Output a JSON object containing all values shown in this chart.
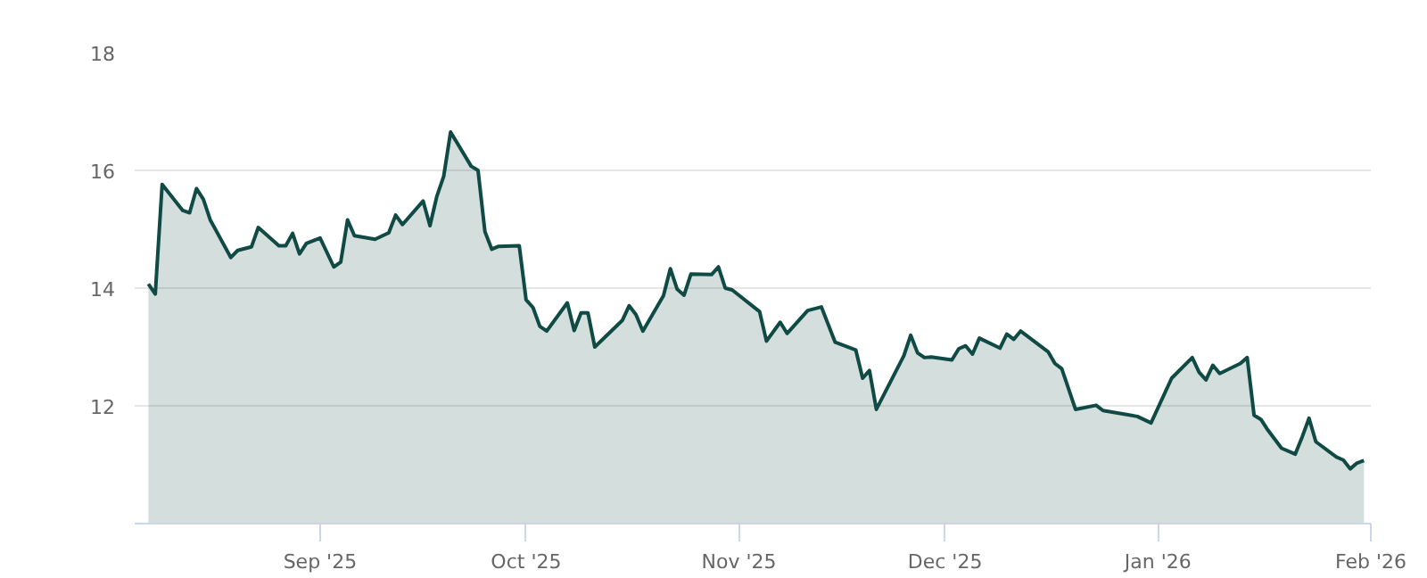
{
  "chart_data": {
    "type": "area",
    "series": [
      {
        "color": "#0f4a45",
        "x": [
          "2025-08-07",
          "2025-08-08",
          "2025-08-09",
          "2025-08-12",
          "2025-08-13",
          "2025-08-14",
          "2025-08-15",
          "2025-08-16",
          "2025-08-19",
          "2025-08-20",
          "2025-08-22",
          "2025-08-23",
          "2025-08-26",
          "2025-08-27",
          "2025-08-28",
          "2025-08-29",
          "2025-08-30",
          "2025-09-01",
          "2025-09-03",
          "2025-09-04",
          "2025-09-05",
          "2025-09-06",
          "2025-09-09",
          "2025-09-11",
          "2025-09-12",
          "2025-09-13",
          "2025-09-16",
          "2025-09-17",
          "2025-09-18",
          "2025-09-19",
          "2025-09-20",
          "2025-09-23",
          "2025-09-24",
          "2025-09-25",
          "2025-09-26",
          "2025-09-27",
          "2025-09-30",
          "2025-10-01",
          "2025-10-02",
          "2025-10-03",
          "2025-10-04",
          "2025-10-07",
          "2025-10-08",
          "2025-10-09",
          "2025-10-10",
          "2025-10-11",
          "2025-10-15",
          "2025-10-16",
          "2025-10-17",
          "2025-10-18",
          "2025-10-21",
          "2025-10-22",
          "2025-10-23",
          "2025-10-24",
          "2025-10-25",
          "2025-10-28",
          "2025-10-29",
          "2025-10-30",
          "2025-10-31",
          "2025-11-04",
          "2025-11-05",
          "2025-11-07",
          "2025-11-08",
          "2025-11-11",
          "2025-11-13",
          "2025-11-15",
          "2025-11-18",
          "2025-11-19",
          "2025-11-20",
          "2025-11-21",
          "2025-11-25",
          "2025-11-26",
          "2025-11-27",
          "2025-11-28",
          "2025-11-29",
          "2025-12-02",
          "2025-12-03",
          "2025-12-04",
          "2025-12-05",
          "2025-12-06",
          "2025-12-09",
          "2025-12-10",
          "2025-12-11",
          "2025-12-12",
          "2025-12-16",
          "2025-12-17",
          "2025-12-18",
          "2025-12-20",
          "2025-12-23",
          "2025-12-24",
          "2025-12-29",
          "2025-12-31",
          "2026-01-03",
          "2026-01-06",
          "2026-01-07",
          "2026-01-08",
          "2026-01-09",
          "2026-01-10",
          "2026-01-13",
          "2026-01-14",
          "2026-01-15",
          "2026-01-16",
          "2026-01-17",
          "2026-01-19",
          "2026-01-21",
          "2026-01-22",
          "2026-01-23",
          "2026-01-24",
          "2026-01-27",
          "2026-01-28",
          "2026-01-29",
          "2026-01-30",
          "2026-01-31"
        ],
        "values": [
          14.07,
          13.9,
          15.76,
          15.32,
          15.28,
          15.69,
          15.51,
          15.16,
          14.52,
          14.64,
          14.7,
          15.03,
          14.72,
          14.72,
          14.93,
          14.58,
          14.76,
          14.85,
          14.36,
          14.44,
          15.16,
          14.89,
          14.83,
          14.94,
          15.24,
          15.08,
          15.48,
          15.06,
          15.56,
          15.9,
          16.65,
          16.07,
          16.0,
          14.96,
          14.66,
          14.71,
          14.72,
          13.8,
          13.67,
          13.35,
          13.27,
          13.75,
          13.28,
          13.58,
          13.58,
          13.0,
          13.45,
          13.7,
          13.55,
          13.27,
          13.87,
          14.33,
          13.98,
          13.88,
          14.24,
          14.23,
          14.36,
          14.0,
          13.97,
          13.6,
          13.1,
          13.42,
          13.23,
          13.62,
          13.68,
          13.08,
          12.95,
          12.47,
          12.6,
          11.94,
          12.85,
          13.2,
          12.9,
          12.82,
          12.83,
          12.78,
          12.97,
          13.02,
          12.88,
          13.15,
          12.98,
          13.22,
          13.13,
          13.27,
          12.92,
          12.72,
          12.63,
          11.94,
          12.01,
          11.92,
          11.82,
          11.71,
          12.47,
          12.82,
          12.57,
          12.44,
          12.69,
          12.55,
          12.72,
          12.82,
          11.84,
          11.77,
          11.59,
          11.28,
          11.18,
          11.47,
          11.79,
          11.39,
          11.13,
          11.08,
          10.93,
          11.03,
          11.07
        ]
      }
    ],
    "xlim": [
      "2025-08-05",
      "2026-02-01"
    ],
    "xticks": [
      {
        "value": "2025-09-01",
        "label": "Sep '25"
      },
      {
        "value": "2025-10-01",
        "label": "Oct '25"
      },
      {
        "value": "2025-11-01",
        "label": "Nov '25"
      },
      {
        "value": "2025-12-01",
        "label": "Dec '25"
      },
      {
        "value": "2026-01-01",
        "label": "Jan '26"
      },
      {
        "value": "2026-02-01",
        "label": "Feb '26"
      }
    ],
    "ylim": [
      10,
      18
    ],
    "yticks": [
      {
        "value": 10,
        "label": null
      },
      12,
      14,
      16,
      18
    ],
    "grid": "y"
  }
}
